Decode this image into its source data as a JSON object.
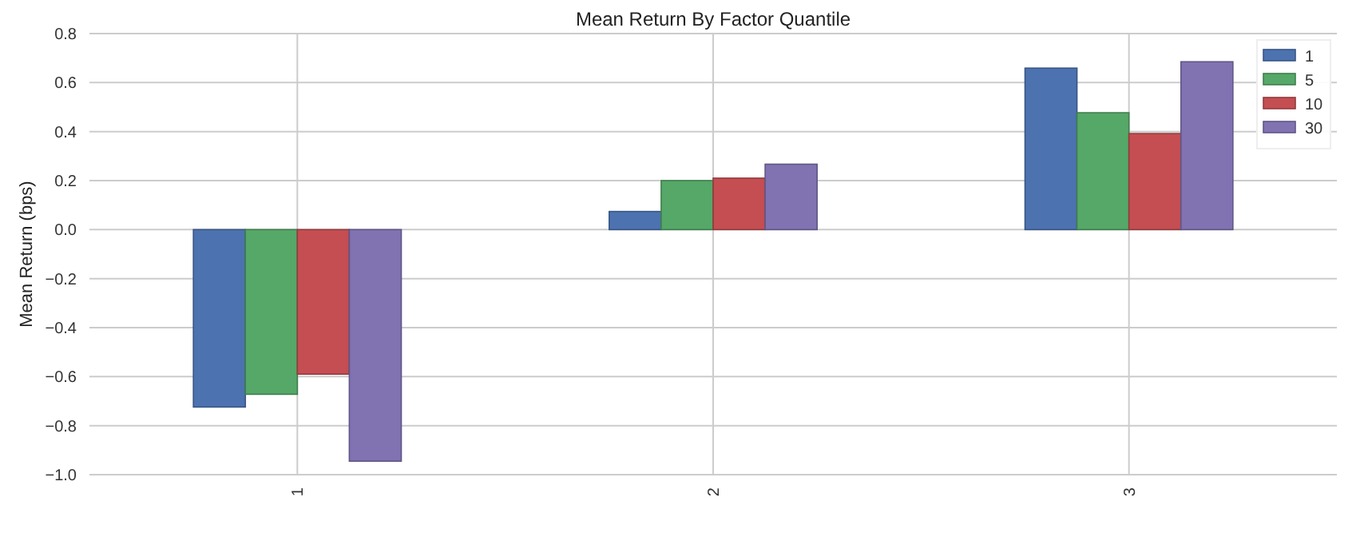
{
  "chart_data": {
    "type": "bar",
    "title": "Mean Return By Factor Quantile",
    "ylabel": "Mean Return (bps)",
    "categories": [
      "1",
      "2",
      "3"
    ],
    "series": [
      {
        "name": "1",
        "color": "#4c72b0",
        "values": [
          -0.724,
          0.074,
          0.659
        ]
      },
      {
        "name": "5",
        "color": "#55a868",
        "values": [
          -0.672,
          0.2,
          0.477
        ]
      },
      {
        "name": "10",
        "color": "#c44e52",
        "values": [
          -0.59,
          0.21,
          0.392
        ]
      },
      {
        "name": "30",
        "color": "#8172b2",
        "values": [
          -0.945,
          0.267,
          0.685
        ]
      }
    ],
    "ylim": [
      -1.0,
      0.8
    ],
    "yticks": [
      {
        "value": -1.0,
        "label": "−1.0"
      },
      {
        "value": -0.8,
        "label": "−0.8"
      },
      {
        "value": -0.6,
        "label": "−0.6"
      },
      {
        "value": -0.4,
        "label": "−0.4"
      },
      {
        "value": -0.2,
        "label": "−0.2"
      },
      {
        "value": 0,
        "label": "0.0"
      },
      {
        "value": 0.2,
        "label": "0.2"
      },
      {
        "value": 0.4,
        "label": "0.4"
      },
      {
        "value": 0.6,
        "label": "0.6"
      },
      {
        "value": 0.8,
        "label": "0.8"
      }
    ],
    "grid": true,
    "legend": "top right"
  }
}
